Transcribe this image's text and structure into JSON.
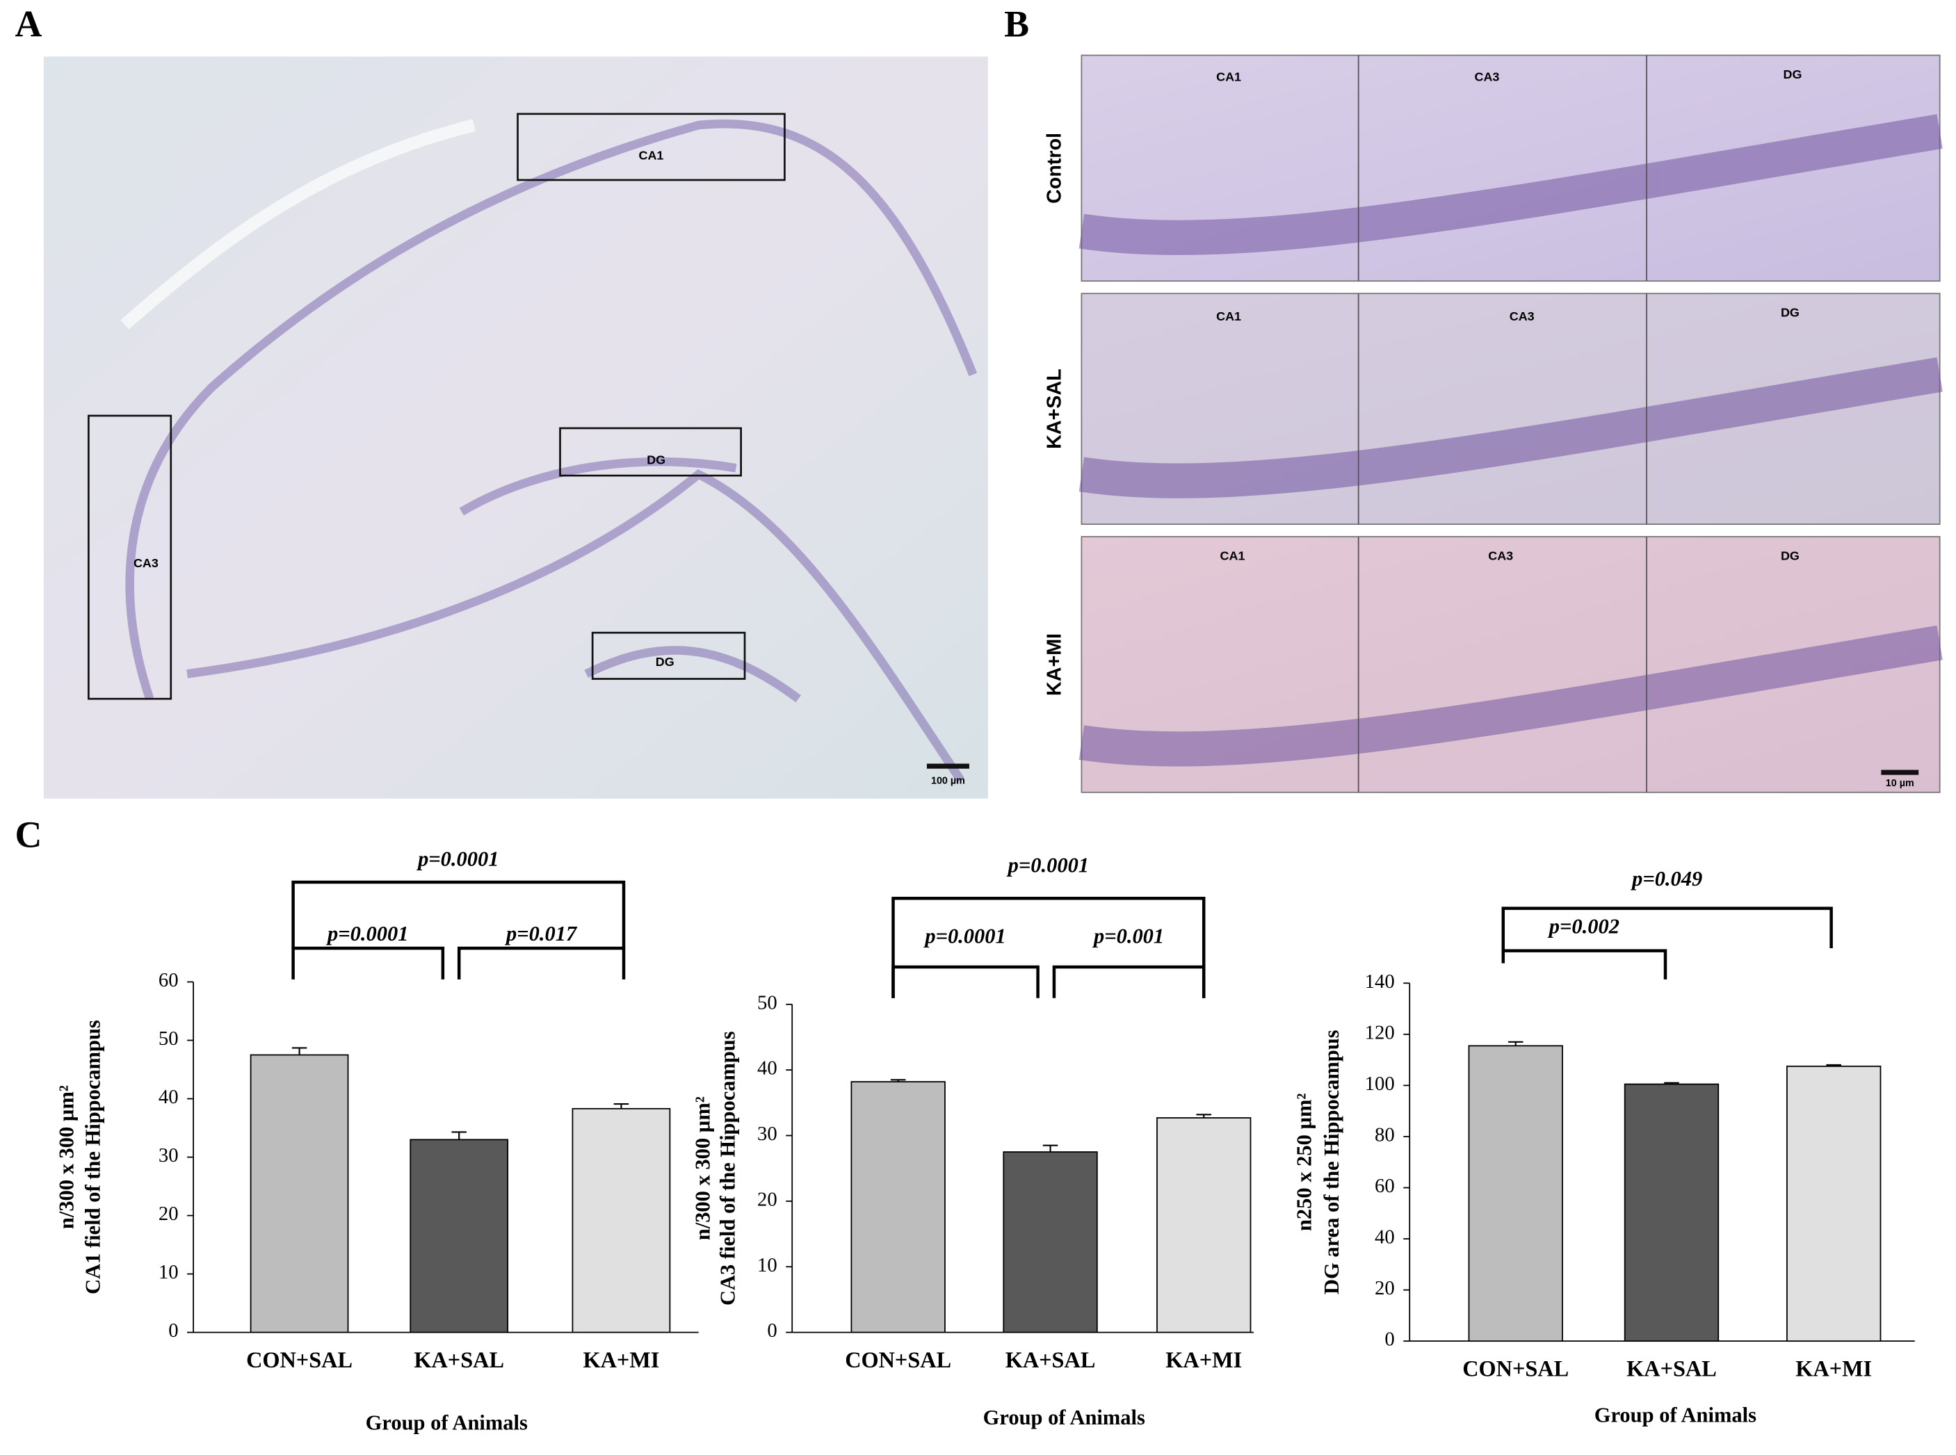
{
  "panels": {
    "a": "A",
    "b": "B",
    "c": "C"
  },
  "panel_a": {
    "regions": [
      "CA1",
      "DG",
      "CA3",
      "DG"
    ],
    "scale_bar": "100 µm"
  },
  "panel_b": {
    "rows": [
      "Control",
      "KA+SAL",
      "KA+MI"
    ],
    "columns": [
      "CA1",
      "CA3",
      "DG"
    ],
    "scale_bar": "10 µm"
  },
  "chart_data": [
    {
      "type": "bar",
      "y_label": [
        "n/300 x 300 µm²",
        "CA1 field of the Hippocampus"
      ],
      "x_label": "Group of Animals",
      "categories": [
        "CON+SAL",
        "KA+SAL",
        "KA+MI"
      ],
      "values": [
        47.5,
        33,
        38.3
      ],
      "errors": [
        1.2,
        1.3,
        0.8
      ],
      "colors": [
        "#bdbdbd",
        "#595959",
        "#e0e0e0"
      ],
      "annotations": [
        "p=0.0001",
        "p=0.0001",
        "p=0.017"
      ],
      "ylim": [
        0,
        60
      ],
      "yticks": [
        0,
        10,
        20,
        30,
        40,
        50,
        60
      ]
    },
    {
      "type": "bar",
      "y_label": [
        "n/300 x 300 µm²",
        "CA3 field of the Hippocampus"
      ],
      "x_label": "Group of Animals",
      "categories": [
        "CON+SAL",
        "KA+SAL",
        "KA+MI"
      ],
      "values": [
        38.2,
        27.5,
        32.7
      ],
      "errors": [
        0.3,
        1.0,
        0.5
      ],
      "colors": [
        "#bdbdbd",
        "#595959",
        "#e0e0e0"
      ],
      "annotations": [
        "p=0.0001",
        "p=0.0001",
        "p=0.001"
      ],
      "ylim": [
        0,
        50
      ],
      "yticks": [
        0,
        10,
        20,
        30,
        40,
        50
      ]
    },
    {
      "type": "bar",
      "y_label": [
        "n250 x 250 µm²",
        "DG area of the Hippocampus"
      ],
      "x_label": "Group of Animals",
      "categories": [
        "CON+SAL",
        "KA+SAL",
        "KA+MI"
      ],
      "values": [
        115.5,
        100.5,
        107.5
      ],
      "errors": [
        1.5,
        0.5,
        0.5
      ],
      "colors": [
        "#bdbdbd",
        "#595959",
        "#e0e0e0"
      ],
      "annotations": [
        "p=0.049",
        "p=0.002"
      ],
      "ylim": [
        0,
        140
      ],
      "yticks": [
        0,
        20,
        40,
        60,
        80,
        100,
        120,
        140
      ]
    }
  ]
}
